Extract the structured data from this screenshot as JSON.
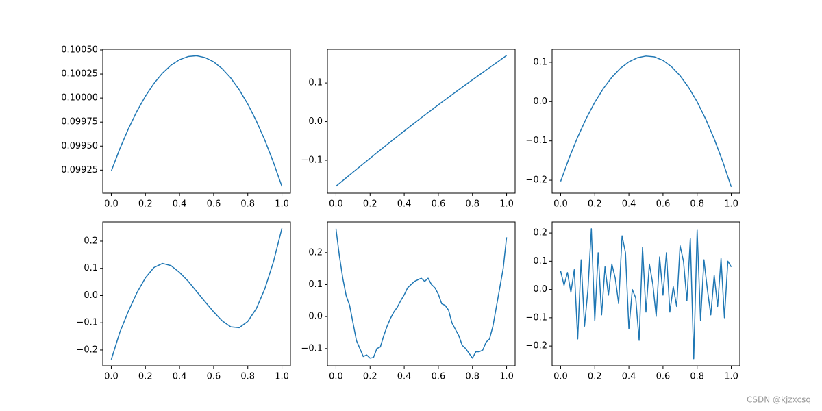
{
  "chart_data": [
    {
      "type": "line",
      "color": "#1f77b4",
      "x": [
        0,
        0.05,
        0.1,
        0.15,
        0.2,
        0.25,
        0.3,
        0.35,
        0.4,
        0.45,
        0.5,
        0.55,
        0.6,
        0.65,
        0.7,
        0.75,
        0.8,
        0.85,
        0.9,
        0.95,
        1
      ],
      "values": [
        0.09924,
        0.099472,
        0.099679,
        0.099862,
        0.100019,
        0.100152,
        0.100259,
        0.100342,
        0.100399,
        0.100432,
        0.10044,
        0.100421,
        0.100377,
        0.100306,
        0.100209,
        0.100086,
        0.099937,
        0.099762,
        0.099561,
        0.099333,
        0.09908
      ],
      "xlim": [
        -0.05,
        1.05
      ],
      "xticks": [
        {
          "value": 0,
          "label": "0.0"
        },
        0.2,
        0.4,
        0.6,
        0.8,
        {
          "value": 1,
          "label": "1.0"
        }
      ],
      "ylim": [
        0.09901,
        0.100507
      ],
      "yticks": [
        {
          "value": 0.09925,
          "label": "0.09925"
        },
        {
          "value": 0.0995,
          "label": "0.09950"
        },
        {
          "value": 0.09975,
          "label": "0.09975"
        },
        {
          "value": 0.1,
          "label": "0.10000"
        },
        {
          "value": 0.10025,
          "label": "0.10025"
        },
        {
          "value": 0.1005,
          "label": "0.10050"
        }
      ]
    },
    {
      "type": "line",
      "color": "#1f77b4",
      "x": [
        0,
        0.05,
        0.1,
        0.15,
        0.2,
        0.25,
        0.3,
        0.35,
        0.4,
        0.45,
        0.5,
        0.55,
        0.6,
        0.65,
        0.7,
        0.75,
        0.8,
        0.85,
        0.9,
        0.95,
        1
      ],
      "values": [
        -0.167,
        -0.1489,
        -0.1307,
        -0.1127,
        -0.0947,
        -0.0768,
        -0.0591,
        -0.0416,
        -0.0242,
        -0.007,
        0.01,
        0.0268,
        0.0434,
        0.0598,
        0.0761,
        0.0922,
        0.1081,
        0.1239,
        0.1397,
        0.1553,
        0.171
      ],
      "xlim": [
        -0.05,
        1.05
      ],
      "xticks": [
        {
          "value": 0,
          "label": "0.0"
        },
        0.2,
        0.4,
        0.6,
        0.8,
        {
          "value": 1,
          "label": "1.0"
        }
      ],
      "ylim": [
        -0.185,
        0.187
      ],
      "yticks": [
        {
          "value": -0.1,
          "label": "−0.1"
        },
        {
          "value": 0,
          "label": "0.0"
        },
        0.1
      ]
    },
    {
      "type": "line",
      "color": "#1f77b4",
      "x": [
        0,
        0.05,
        0.1,
        0.15,
        0.2,
        0.25,
        0.3,
        0.35,
        0.4,
        0.45,
        0.5,
        0.55,
        0.6,
        0.65,
        0.7,
        0.75,
        0.8,
        0.85,
        0.9,
        0.95,
        1
      ],
      "values": [
        -0.203,
        -0.1434,
        -0.0901,
        -0.0429,
        -0.0018,
        0.0331,
        0.0619,
        0.0846,
        0.1012,
        0.1116,
        0.1159,
        0.1138,
        0.1048,
        0.0888,
        0.0659,
        0.0361,
        -0.0006,
        -0.0443,
        -0.095,
        -0.1525,
        -0.217
      ],
      "xlim": [
        -0.05,
        1.05
      ],
      "xticks": [
        {
          "value": 0,
          "label": "0.0"
        },
        0.2,
        0.4,
        0.6,
        0.8,
        {
          "value": 1,
          "label": "1.0"
        }
      ],
      "ylim": [
        -0.233,
        0.133
      ],
      "yticks": [
        {
          "value": -0.2,
          "label": "−0.2"
        },
        {
          "value": -0.1,
          "label": "−0.1"
        },
        {
          "value": 0,
          "label": "0.0"
        },
        0.1
      ]
    },
    {
      "type": "line",
      "color": "#1f77b4",
      "x": [
        0,
        0.05,
        0.1,
        0.15,
        0.2,
        0.25,
        0.3,
        0.35,
        0.4,
        0.45,
        0.5,
        0.55,
        0.6,
        0.65,
        0.7,
        0.75,
        0.8,
        0.85,
        0.9,
        0.95,
        1
      ],
      "values": [
        -0.235,
        -0.135,
        -0.058,
        0.01,
        0.065,
        0.103,
        0.118,
        0.11,
        0.085,
        0.053,
        0.015,
        -0.023,
        -0.06,
        -0.093,
        -0.115,
        -0.118,
        -0.095,
        -0.048,
        0.025,
        0.123,
        0.247
      ],
      "xlim": [
        -0.05,
        1.05
      ],
      "xticks": [
        {
          "value": 0,
          "label": "0.0"
        },
        0.2,
        0.4,
        0.6,
        0.8,
        {
          "value": 1,
          "label": "1.0"
        }
      ],
      "ylim": [
        -0.258,
        0.2704
      ],
      "yticks": [
        {
          "value": -0.2,
          "label": "−0.2"
        },
        {
          "value": -0.1,
          "label": "−0.1"
        },
        {
          "value": 0,
          "label": "0.0"
        },
        0.1,
        0.2
      ]
    },
    {
      "type": "line",
      "color": "#1f77b4",
      "x": [
        0,
        0.02,
        0.04,
        0.06,
        0.08,
        0.1,
        0.12,
        0.14,
        0.16,
        0.18,
        0.2,
        0.22,
        0.24,
        0.26,
        0.28,
        0.3,
        0.32,
        0.34,
        0.36,
        0.38,
        0.4,
        0.42,
        0.44,
        0.46,
        0.48,
        0.5,
        0.52,
        0.54,
        0.56,
        0.58,
        0.6,
        0.62,
        0.64,
        0.66,
        0.68,
        0.7,
        0.72,
        0.74,
        0.76,
        0.78,
        0.8,
        0.82,
        0.84,
        0.86,
        0.88,
        0.9,
        0.92,
        0.94,
        0.96,
        0.98,
        1
      ],
      "values": [
        0.275,
        0.19,
        0.12,
        0.065,
        0.035,
        -0.02,
        -0.075,
        -0.1,
        -0.125,
        -0.12,
        -0.13,
        -0.128,
        -0.1,
        -0.095,
        -0.06,
        -0.03,
        -0.005,
        0.015,
        0.03,
        0.05,
        0.068,
        0.09,
        0.1,
        0.11,
        0.115,
        0.12,
        0.11,
        0.12,
        0.1,
        0.09,
        0.07,
        0.04,
        0.035,
        0.02,
        -0.02,
        -0.04,
        -0.06,
        -0.09,
        -0.1,
        -0.115,
        -0.13,
        -0.11,
        -0.11,
        -0.105,
        -0.08,
        -0.07,
        -0.03,
        0.03,
        0.09,
        0.15,
        0.248
      ],
      "xlim": [
        -0.05,
        1.05
      ],
      "xticks": [
        {
          "value": 0,
          "label": "0.0"
        },
        0.2,
        0.4,
        0.6,
        0.8,
        {
          "value": 1,
          "label": "1.0"
        }
      ],
      "ylim": [
        -0.154,
        0.296
      ],
      "yticks": [
        {
          "value": -0.1,
          "label": "−0.1"
        },
        {
          "value": 0,
          "label": "0.0"
        },
        0.1,
        0.2
      ]
    },
    {
      "type": "line",
      "color": "#1f77b4",
      "x": [
        0,
        0.02,
        0.04,
        0.06,
        0.08,
        0.1,
        0.12,
        0.14,
        0.16,
        0.18,
        0.2,
        0.22,
        0.24,
        0.26,
        0.28,
        0.3,
        0.32,
        0.34,
        0.36,
        0.38,
        0.4,
        0.42,
        0.44,
        0.46,
        0.48,
        0.5,
        0.52,
        0.54,
        0.56,
        0.58,
        0.6,
        0.62,
        0.64,
        0.66,
        0.68,
        0.7,
        0.72,
        0.74,
        0.76,
        0.78,
        0.8,
        0.82,
        0.84,
        0.86,
        0.88,
        0.9,
        0.92,
        0.94,
        0.96,
        0.98,
        1
      ],
      "values": [
        0.065,
        0.015,
        0.06,
        -0.01,
        0.07,
        -0.175,
        0.105,
        -0.13,
        0.0,
        0.215,
        -0.11,
        0.13,
        -0.09,
        0.08,
        -0.02,
        0.09,
        0.04,
        -0.05,
        0.19,
        0.13,
        -0.14,
        0.0,
        -0.03,
        -0.18,
        0.15,
        -0.08,
        0.09,
        0.02,
        -0.095,
        0.115,
        -0.02,
        0.13,
        -0.08,
        0.01,
        -0.06,
        0.155,
        0.1,
        -0.04,
        0.18,
        -0.245,
        0.21,
        -0.11,
        0.105,
        0.0,
        -0.09,
        0.05,
        -0.06,
        0.11,
        -0.1,
        0.1,
        0.08
      ],
      "xlim": [
        -0.05,
        1.05
      ],
      "xticks": [
        {
          "value": 0,
          "label": "0.0"
        },
        0.2,
        0.4,
        0.6,
        0.8,
        {
          "value": 1,
          "label": "1.0"
        }
      ],
      "ylim": [
        -0.27,
        0.239
      ],
      "yticks": [
        {
          "value": -0.2,
          "label": "−0.2"
        },
        {
          "value": -0.1,
          "label": "−0.1"
        },
        {
          "value": 0,
          "label": "0.0"
        },
        0.1,
        0.2
      ]
    }
  ],
  "watermark": "CSDN @kjzxcsq"
}
